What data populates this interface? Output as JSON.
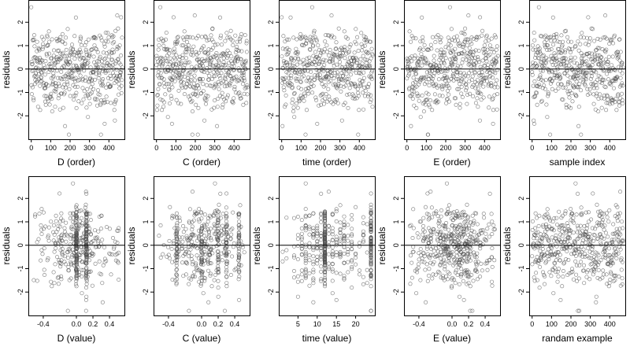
{
  "figure": {
    "marker_color": "#4d4d4d",
    "zero_line_color": "#000000",
    "frame_color": "#000000"
  },
  "chart_data": [
    {
      "type": "scatter",
      "title": "",
      "xlabel": "D (order)",
      "ylabel": "residuals",
      "xlim": [
        -15,
        480
      ],
      "ylim": [
        -3.0,
        2.95
      ],
      "xticks": [
        0,
        100,
        200,
        300,
        400
      ],
      "yticks": [
        -2,
        -1,
        0,
        1,
        2
      ],
      "grid": false,
      "reference_line_y": 0,
      "n_points": 470,
      "x_kind": "order",
      "series": [
        {
          "points_hint": "x from 0 to 470 (index order), y residuals spread mostly between -2.5 and 2.7"
        }
      ]
    },
    {
      "type": "scatter",
      "title": "",
      "xlabel": "C (order)",
      "ylabel": "residuals",
      "xlim": [
        -15,
        480
      ],
      "ylim": [
        -3.0,
        2.95
      ],
      "xticks": [
        0,
        100,
        200,
        300,
        400
      ],
      "yticks": [
        -2,
        -1,
        0,
        1,
        2
      ],
      "grid": false,
      "reference_line_y": 0,
      "n_points": 470,
      "x_kind": "order"
    },
    {
      "type": "scatter",
      "title": "",
      "xlabel": "time (order)",
      "ylabel": "residuals",
      "xlim": [
        -15,
        480
      ],
      "ylim": [
        -3.0,
        2.95
      ],
      "xticks": [
        0,
        100,
        200,
        300,
        400
      ],
      "yticks": [
        -2,
        -1,
        0,
        1,
        2
      ],
      "grid": false,
      "reference_line_y": 0,
      "n_points": 470,
      "x_kind": "order"
    },
    {
      "type": "scatter",
      "title": "",
      "xlabel": "E (order)",
      "ylabel": "residuals",
      "xlim": [
        -15,
        480
      ],
      "ylim": [
        -3.0,
        2.95
      ],
      "xticks": [
        0,
        100,
        200,
        300,
        400
      ],
      "yticks": [
        -2,
        -1,
        0,
        1,
        2
      ],
      "grid": false,
      "reference_line_y": 0,
      "n_points": 470,
      "x_kind": "order"
    },
    {
      "type": "scatter",
      "title": "",
      "xlabel": "sample index",
      "ylabel": "residuals",
      "xlim": [
        -15,
        480
      ],
      "ylim": [
        -3.0,
        2.95
      ],
      "xticks": [
        0,
        100,
        200,
        300,
        400
      ],
      "yticks": [
        -2,
        -1,
        0,
        1,
        2
      ],
      "grid": false,
      "reference_line_y": 0,
      "n_points": 470,
      "x_kind": "order"
    },
    {
      "type": "scatter",
      "title": "",
      "xlabel": "D (value)",
      "ylabel": "residuals",
      "xlim": [
        -0.58,
        0.58
      ],
      "ylim": [
        -3.0,
        2.95
      ],
      "xticks": [
        -0.4,
        0.0,
        0.2,
        0.4
      ],
      "xtick_labels": [
        "-0.4",
        "0.0",
        "0.2",
        "0.4"
      ],
      "yticks": [
        -2,
        -1,
        0,
        1,
        2
      ],
      "grid": false,
      "reference_line_y": 0,
      "n_points": 470,
      "x_kind": "value",
      "x_range_data": [
        -0.52,
        0.52
      ],
      "x_concentration": [
        0.0,
        0.12
      ]
    },
    {
      "type": "scatter",
      "title": "",
      "xlabel": "C (value)",
      "ylabel": "residuals",
      "xlim": [
        -0.58,
        0.58
      ],
      "ylim": [
        -3.0,
        2.95
      ],
      "xticks": [
        -0.4,
        0.0,
        0.2,
        0.4
      ],
      "xtick_labels": [
        "-0.4",
        "0.0",
        "0.2",
        "0.4"
      ],
      "yticks": [
        -2,
        -1,
        0,
        1,
        2
      ],
      "grid": false,
      "reference_line_y": 0,
      "n_points": 470,
      "x_kind": "value",
      "x_range_data": [
        -0.52,
        0.52
      ],
      "x_concentration": [
        -0.3,
        0.0,
        0.2,
        0.3,
        0.45
      ]
    },
    {
      "type": "scatter",
      "title": "",
      "xlabel": "time (value)",
      "ylabel": "residuals",
      "xlim": [
        0,
        25
      ],
      "ylim": [
        -3.0,
        2.95
      ],
      "xticks": [
        5,
        10,
        15,
        20
      ],
      "yticks": [
        -2,
        -1,
        0,
        1,
        2
      ],
      "grid": false,
      "reference_line_y": 0,
      "n_points": 470,
      "x_kind": "value",
      "x_range_data": [
        1,
        24
      ],
      "x_concentration": [
        12,
        24
      ]
    },
    {
      "type": "scatter",
      "title": "",
      "xlabel": "E (value)",
      "ylabel": "residuals",
      "xlim": [
        -0.58,
        0.58
      ],
      "ylim": [
        -3.0,
        2.95
      ],
      "xticks": [
        -0.4,
        0.0,
        0.2,
        0.4
      ],
      "xtick_labels": [
        "-0.4",
        "0.0",
        "0.2",
        "0.4"
      ],
      "yticks": [
        -2,
        -1,
        0,
        1,
        2
      ],
      "grid": false,
      "reference_line_y": 0,
      "n_points": 470,
      "x_kind": "value",
      "x_range_data": [
        -0.52,
        0.52
      ],
      "x_concentration": []
    },
    {
      "type": "scatter",
      "title": "",
      "xlabel": "randam example",
      "ylabel": "residuals",
      "xlim": [
        -15,
        480
      ],
      "ylim": [
        -3.0,
        2.95
      ],
      "xticks": [
        0,
        100,
        200,
        300,
        400
      ],
      "yticks": [
        -2,
        -1,
        0,
        1,
        2
      ],
      "grid": false,
      "reference_line_y": 0,
      "n_points": 470,
      "x_kind": "order"
    }
  ]
}
